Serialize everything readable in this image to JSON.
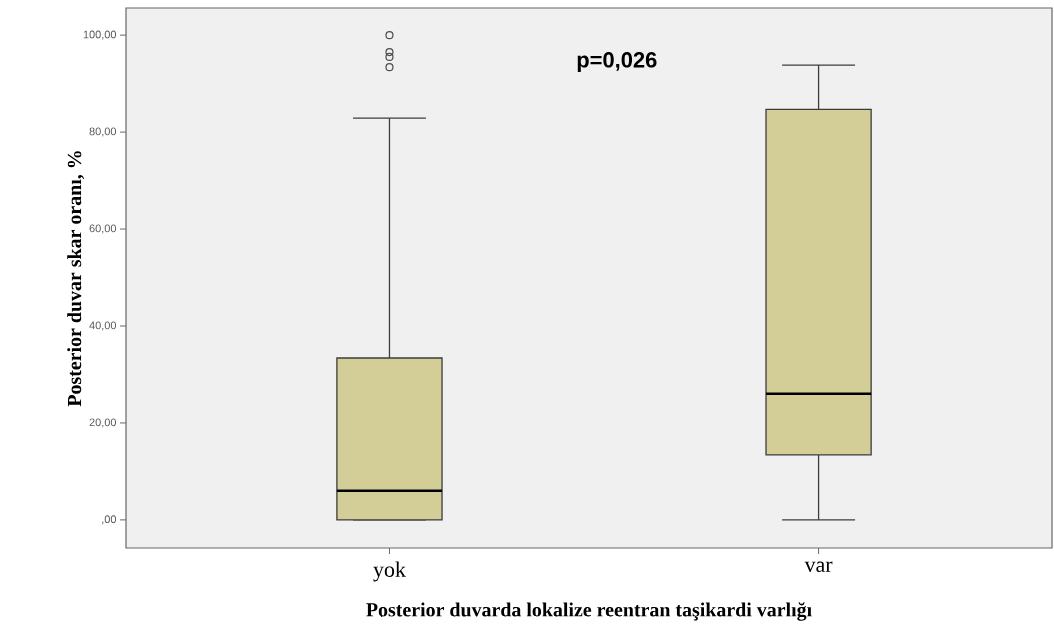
{
  "chart_data": {
    "type": "box",
    "xlabel": "Posterior duvarda lokalize reentran taşikardi varlığı",
    "ylabel": "Posterior duvar skar oranı, %",
    "categories": [
      "yok",
      "var"
    ],
    "boxes": [
      {
        "low": 0,
        "q1": 0,
        "median": 6,
        "q3": 33.4,
        "high": 82.9,
        "outliers": [
          93.4,
          95.5,
          96.5,
          100
        ]
      },
      {
        "low": 0,
        "q1": 13.4,
        "median": 26,
        "q3": 84.7,
        "high": 93.8
      }
    ],
    "color": "#d3ce98",
    "ylim": [
      -5.8,
      105.6
    ],
    "yticks": [
      {
        "value": 0,
        "label": ",00"
      },
      {
        "value": 20,
        "label": "20,00"
      },
      {
        "value": 40,
        "label": "40,00"
      },
      {
        "value": 60,
        "label": "60,00"
      },
      {
        "value": 80,
        "label": "80,00"
      },
      {
        "value": 100,
        "label": "100,00"
      }
    ],
    "annotations": [
      "p=0,026"
    ]
  }
}
